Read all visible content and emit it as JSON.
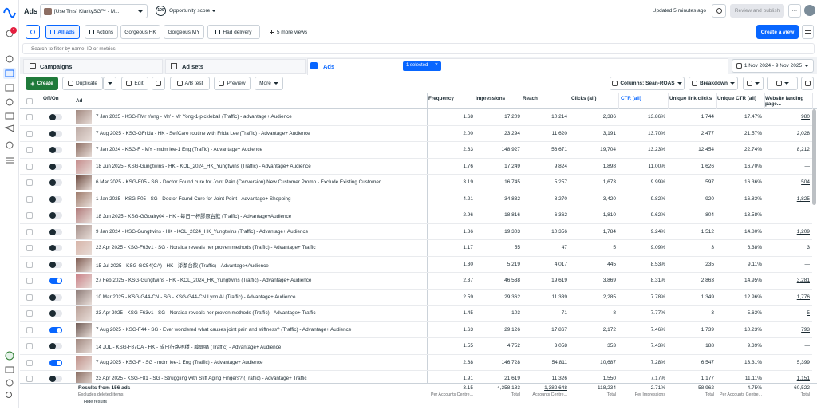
{
  "topbar": {
    "title": "Ads",
    "account": "[Use This] KlaritySG™ - M...",
    "score": "100",
    "score_label": "Opportunity score",
    "updated": "Updated 5 minutes ago",
    "publish": "Review and publish"
  },
  "sidebar": {
    "badge": "4"
  },
  "views": {
    "items": [
      "All ads",
      "Actions",
      "Gorgeous HK",
      "Gorgeous MY",
      "Had delivery",
      "5 more views"
    ],
    "create": "Create a view"
  },
  "search": {
    "placeholder": "Search to filter by name, ID or metrics"
  },
  "tabs": {
    "items": [
      "Campaigns",
      "Ad sets",
      "Ads"
    ],
    "selected": "1 selected",
    "date_range": "1 Nov 2024 - 9 Nov 2025"
  },
  "toolbar": {
    "create": "Create",
    "duplicate": "Duplicate",
    "edit": "Edit",
    "ab_test": "A/B test",
    "preview": "Preview",
    "more": "More",
    "columns": "Columns: Sean-ROAS",
    "breakdown": "Breakdown"
  },
  "table": {
    "toggle_header": "Off/On",
    "ad_header": "Ad",
    "sort_column": 4,
    "columns": [
      "Frequency",
      "Impressions",
      "Reach",
      "Clicks (all)",
      "CTR (all)",
      "Unique link clicks",
      "Unique CTR (all)",
      "Website landing page..."
    ],
    "rows": [
      {
        "on": false,
        "name": "7 Jan 2025 - KSG-FMr Yong - MY - Mr Yong-1-pickleball (Traffic) - advantage+ Audience",
        "cells": [
          "1.68",
          "17,209",
          "10,214",
          "2,386",
          "13.86%",
          "1,744",
          "17.47%",
          "980"
        ]
      },
      {
        "on": false,
        "name": "7 Aug 2025 - KSG-GFrida - HK - SelfCare routine with Frida Lee (Traffic) - Advantage+ Audience",
        "cells": [
          "2.00",
          "23,294",
          "11,620",
          "3,191",
          "13.70%",
          "2,477",
          "21.57%",
          "2,028"
        ]
      },
      {
        "on": false,
        "name": "7 Jan 2024 - KSG-F - MY - mdm lee-1 Eng (Traffic) - Advantage+ Audience",
        "cells": [
          "2.63",
          "148,927",
          "56,671",
          "19,704",
          "13.23%",
          "12,454",
          "22.74%",
          "8,212"
        ]
      },
      {
        "on": false,
        "name": "18 Jun 2025 - KSG-Gungtwins - HK - KOL_2024_HK_Yungtwins (Traffic) - Advantage+ Audience",
        "cells": [
          "1.76",
          "17,249",
          "9,824",
          "1,898",
          "11.00%",
          "1,626",
          "16.70%",
          "—"
        ]
      },
      {
        "on": false,
        "name": "6 Mar 2025 - KSG-F05 - SG - Doctor Found cure for Joint Pain (Conversion) New Customer Promo - Exclude Existing Customer",
        "cells": [
          "3.19",
          "16,745",
          "5,257",
          "1,673",
          "9.99%",
          "597",
          "16.36%",
          "504"
        ]
      },
      {
        "on": false,
        "name": "1 Jan 2025 - KSG-F05 - SG - Doctor Found Cure for Joint Point - Advantage+ Shopping",
        "cells": [
          "4.21",
          "34,832",
          "8,270",
          "3,420",
          "9.82%",
          "920",
          "16.83%",
          "1,825"
        ]
      },
      {
        "on": false,
        "name": "18 Jun 2025 - KSG-GGoalry04 - HK - 每日一杯膠原台飲 (Traffic) - Advantage+Audience",
        "cells": [
          "2.96",
          "18,816",
          "6,362",
          "1,810",
          "9.62%",
          "804",
          "13.58%",
          "—"
        ]
      },
      {
        "on": false,
        "name": "9 Jan 2024 - KSG-Gungtwins - HK - KOL_2024_HK_Yungtwins (Traffic) - Advantage+ Audience",
        "cells": [
          "1.86",
          "19,303",
          "10,356",
          "1,784",
          "9.24%",
          "1,512",
          "14.80%",
          "1,209"
        ]
      },
      {
        "on": false,
        "name": "23 Apr 2025 - KSG-F63v1 - SG - Noraida reveals her proven methods (Traffic) - Advantage+ Traffic",
        "cells": [
          "1.17",
          "55",
          "47",
          "5",
          "9.09%",
          "3",
          "6.38%",
          "3"
        ]
      },
      {
        "on": false,
        "name": "15 Jul 2025 - KSG-GC54(CA) - HK - 淨潔台飲 (Traffic) - Advantage+Audience",
        "cells": [
          "1.30",
          "5,219",
          "4,017",
          "445",
          "8.53%",
          "235",
          "9.11%",
          "—"
        ]
      },
      {
        "on": true,
        "name": "27 Feb 2025 - KSG-Gungtwins - HK - KOL_2024_HK_Yungtwins (Traffic) - Advantage+ Audience",
        "cells": [
          "2.37",
          "46,538",
          "19,619",
          "3,869",
          "8.31%",
          "2,863",
          "14.95%",
          "3,281"
        ]
      },
      {
        "on": false,
        "name": "10 Mar 2025 - KSG-G44-CN - SG - KSG-G44-CN Lynn AI (Traffic) - Advantage+ Audience",
        "cells": [
          "2.59",
          "29,362",
          "11,339",
          "2,285",
          "7.78%",
          "1,349",
          "12.96%",
          "1,776"
        ]
      },
      {
        "on": false,
        "name": "23 Apr 2025 - KSG-F63v1 - SG - Noraida reveals her proven methods (Traffic) - Advantage+ Traffic",
        "cells": [
          "1.45",
          "103",
          "71",
          "8",
          "7.77%",
          "3",
          "5.63%",
          "5"
        ]
      },
      {
        "on": true,
        "name": "7 Aug 2025 - KSG-F44 - SG - Ever wondered what causes joint pain and stiffness? (Traffic) - Advantage+ Audience",
        "cells": [
          "1.63",
          "29,126",
          "17,867",
          "2,172",
          "7.46%",
          "1,739",
          "10.23%",
          "793"
        ]
      },
      {
        "on": false,
        "name": "14 JUL - KSG-F87CA - HK - 成日行路唔穩 - 膝頭痛 (Traffic) - Advantage+ Audience",
        "cells": [
          "1.55",
          "4,752",
          "3,058",
          "353",
          "7.43%",
          "188",
          "9.39%",
          "—"
        ]
      },
      {
        "on": true,
        "name": "7 Aug 2025 - KSG-F - SG - mdm lee-1 Eng (Traffic) - Advantage+ Audience",
        "cells": [
          "2.68",
          "146,728",
          "54,811",
          "10,687",
          "7.28%",
          "6,547",
          "13.31%",
          "5,399"
        ]
      },
      {
        "on": false,
        "name": "23 Apr 2025 - KSG-F81 - SG - Struggling with Stiff Aging Fingers? (Traffic) - Advantage+ Traffic",
        "cells": [
          "1.91",
          "21,619",
          "11,326",
          "1,550",
          "7.17%",
          "1,177",
          "11.11%",
          "1,151"
        ]
      }
    ],
    "footer": {
      "results": "Results from 156 ads",
      "note": "Excludes deleted items",
      "hide": "Hide results",
      "totals": [
        {
          "value": "3.15",
          "label": "Per Accounts Centre..."
        },
        {
          "value": "4,358,183",
          "label": "Total"
        },
        {
          "value": "1,382,648",
          "label": "Accounts Centre..."
        },
        {
          "value": "118,234",
          "label": "Total"
        },
        {
          "value": "2.71%",
          "label": "Per Impressions"
        },
        {
          "value": "58,962",
          "label": "Total"
        },
        {
          "value": "4.75%",
          "label": "Per Accounts Centre..."
        },
        {
          "value": "60,522",
          "label": "Total"
        }
      ]
    }
  }
}
